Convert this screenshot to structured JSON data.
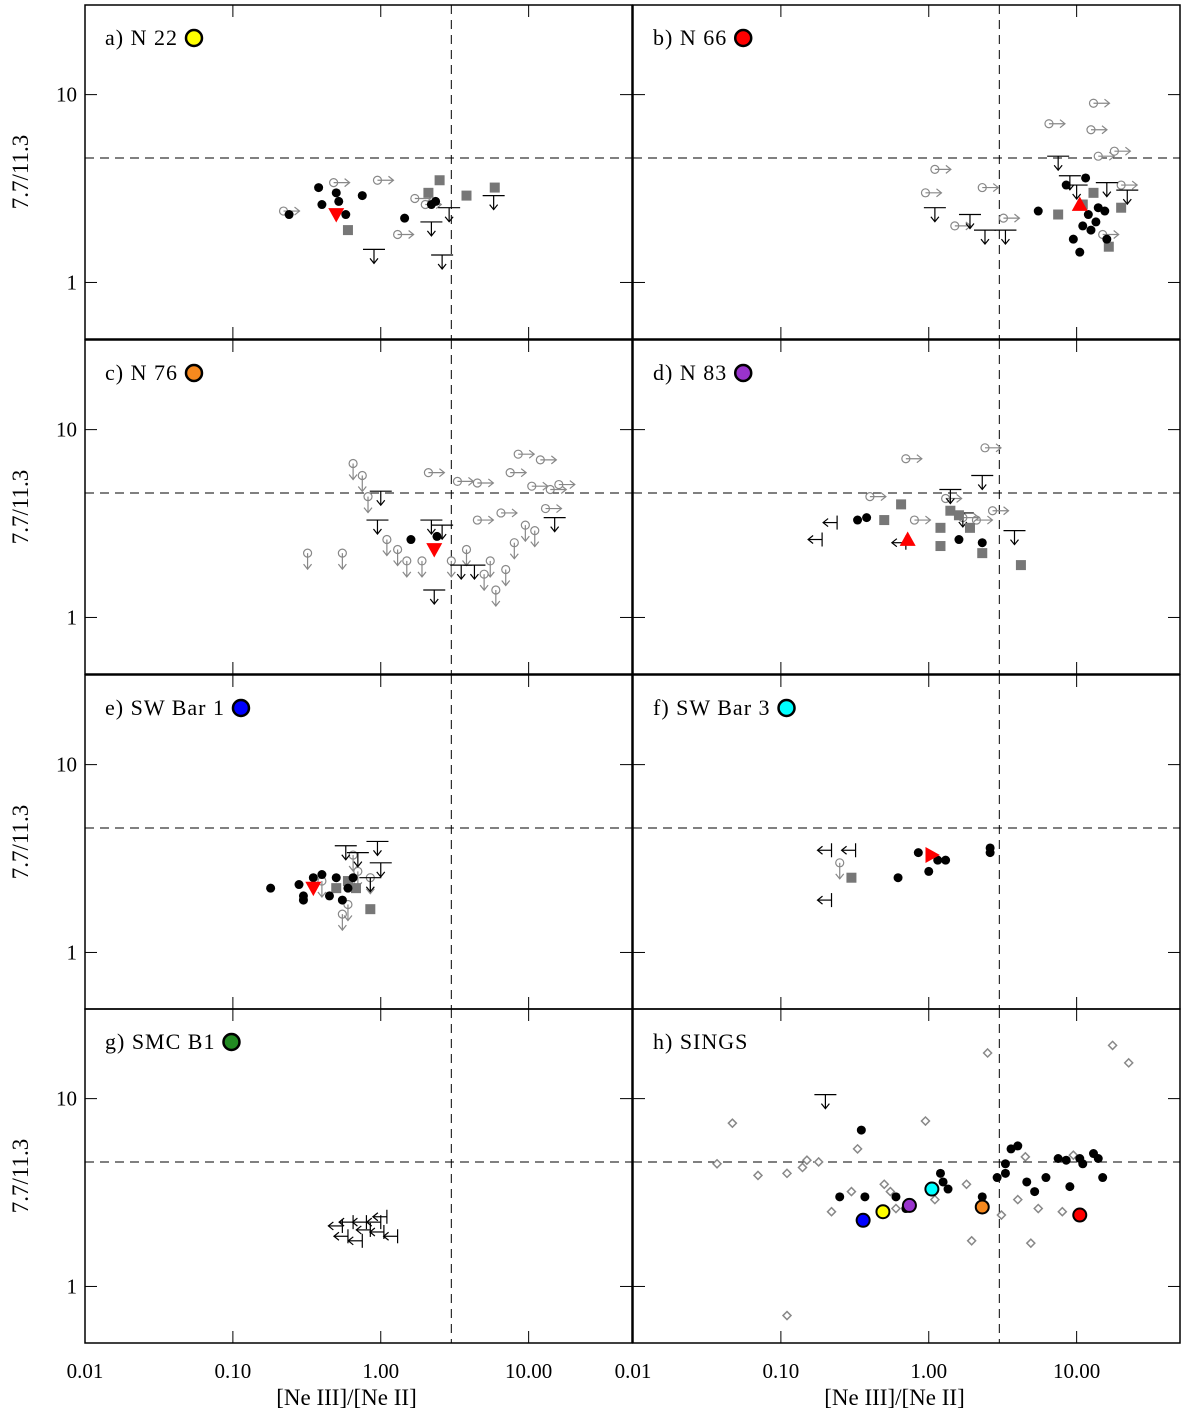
{
  "chart_data": [
    {
      "type": "scatter",
      "label": "a) N 22",
      "marker_color": "#ffff00",
      "xlim": [
        0.01,
        50
      ],
      "ylim": [
        0.5,
        30
      ],
      "log_x": true,
      "log_y": true,
      "xticks": [
        0.01,
        0.1,
        1,
        10
      ],
      "yticks": [
        1,
        10
      ],
      "hline": 4.6,
      "vline": 3,
      "ylabel": "7.7/11.3",
      "series": [
        {
          "color": "#888888",
          "marker": "open-circle",
          "arrow": "right",
          "x": [
            0.22,
            0.48,
            0.95,
            1.3,
            1.7,
            2.0
          ],
          "values": [
            2.4,
            3.4,
            3.5,
            1.8,
            2.8,
            2.6
          ]
        },
        {
          "color": "#000000",
          "marker": "bar",
          "arrow": "down",
          "x": [
            0.9,
            2.2,
            2.6,
            2.9,
            5.8
          ],
          "values": [
            1.5,
            2.1,
            1.4,
            2.5,
            2.9
          ]
        },
        {
          "color": "#777777",
          "marker": "square",
          "x": [
            0.6,
            2.1,
            2.5,
            3.8,
            5.9
          ],
          "values": [
            1.9,
            3.0,
            3.5,
            2.9,
            3.2
          ]
        },
        {
          "color": "#000000",
          "marker": "dot",
          "x": [
            0.24,
            0.38,
            0.4,
            0.5,
            0.52,
            0.58,
            0.75,
            1.45,
            2.2,
            2.35
          ],
          "values": [
            2.3,
            3.2,
            2.6,
            3.0,
            2.7,
            2.3,
            2.9,
            2.2,
            2.6,
            2.7
          ]
        },
        {
          "color": "#ff0000",
          "marker": "triangle-down",
          "x": [
            0.5
          ],
          "values": [
            2.3
          ]
        }
      ]
    },
    {
      "type": "scatter",
      "label": "b) N 66",
      "marker_color": "#ff0000",
      "xlim": [
        0.01,
        50
      ],
      "ylim": [
        0.5,
        30
      ],
      "log_x": true,
      "log_y": true,
      "xticks": [
        0.01,
        0.1,
        1,
        10
      ],
      "yticks": [
        1,
        10
      ],
      "hline": 4.6,
      "vline": 3,
      "series": [
        {
          "color": "#888888",
          "marker": "open-circle",
          "arrow": "right",
          "x": [
            0.95,
            1.1,
            1.5,
            2.3,
            3.2,
            6.5,
            13,
            12.5,
            14,
            18,
            20,
            15
          ],
          "values": [
            3.0,
            4.0,
            2.0,
            3.2,
            2.2,
            7.0,
            9.0,
            6.5,
            4.7,
            5.0,
            3.3,
            1.8
          ]
        },
        {
          "color": "#000000",
          "marker": "bar",
          "arrow": "down",
          "x": [
            1.1,
            1.9,
            2.4,
            3.3,
            7.5,
            9,
            10,
            16,
            22
          ],
          "values": [
            2.5,
            2.3,
            1.9,
            1.9,
            4.7,
            3.7,
            3.3,
            3.4,
            3.1
          ]
        },
        {
          "color": "#777777",
          "marker": "square",
          "x": [
            7.5,
            11,
            13,
            16.5,
            20
          ],
          "values": [
            2.3,
            2.6,
            3.0,
            1.55,
            2.5
          ]
        },
        {
          "color": "#000000",
          "marker": "dot",
          "x": [
            5.5,
            8.5,
            9.5,
            10.5,
            11,
            11.5,
            12,
            12.5,
            13.5,
            14,
            15.5,
            16
          ],
          "values": [
            2.4,
            3.3,
            1.7,
            1.45,
            2.0,
            3.6,
            2.3,
            1.9,
            2.1,
            2.5,
            2.4,
            1.7
          ]
        },
        {
          "color": "#ff0000",
          "marker": "triangle-up",
          "x": [
            10.5
          ],
          "values": [
            2.6
          ]
        }
      ]
    },
    {
      "type": "scatter",
      "label": "c) N 76",
      "marker_color": "#f7891e",
      "xlim": [
        0.01,
        50
      ],
      "ylim": [
        0.5,
        30
      ],
      "log_x": true,
      "log_y": true,
      "xticks": [
        0.01,
        0.1,
        1,
        10
      ],
      "yticks": [
        1,
        10
      ],
      "hline": 4.6,
      "vline": 3,
      "ylabel": "7.7/11.3",
      "series": [
        {
          "color": "#888888",
          "marker": "open-circle",
          "arrow": "down",
          "x": [
            0.32,
            0.55,
            0.65,
            0.75,
            0.82,
            1.1,
            1.3,
            1.5,
            1.9,
            3.0,
            3.8,
            5.5,
            6.0,
            7,
            5,
            8,
            9.5,
            11
          ],
          "values": [
            2.2,
            2.2,
            6.6,
            5.7,
            4.4,
            2.6,
            2.3,
            2.0,
            2.0,
            2.0,
            2.3,
            2.0,
            1.4,
            1.8,
            1.7,
            2.5,
            3.1,
            2.9
          ]
        },
        {
          "color": "#888888",
          "marker": "open-circle",
          "arrow": "right",
          "x": [
            2.1,
            3.3,
            4.5,
            4.5,
            6.5,
            7.5,
            8.5,
            10.5,
            12,
            14,
            16,
            13
          ],
          "values": [
            5.9,
            5.3,
            5.2,
            3.3,
            3.6,
            5.9,
            7.4,
            5.0,
            6.9,
            4.8,
            5.1,
            3.8
          ]
        },
        {
          "color": "#000000",
          "marker": "bar",
          "arrow": "down",
          "x": [
            0.95,
            1.0,
            2.2,
            2.6,
            2.3,
            3.5,
            4.3,
            15
          ],
          "values": [
            3.3,
            4.7,
            3.3,
            3.1,
            1.4,
            1.9,
            1.9,
            3.4
          ]
        },
        {
          "color": "#000000",
          "marker": "dot",
          "x": [
            1.6,
            2.4
          ],
          "values": [
            2.6,
            2.7
          ]
        },
        {
          "color": "#ff0000",
          "marker": "triangle-down",
          "x": [
            2.3
          ],
          "values": [
            2.3
          ]
        }
      ]
    },
    {
      "type": "scatter",
      "label": "d) N 83",
      "marker_color": "#9933cc",
      "xlim": [
        0.01,
        50
      ],
      "ylim": [
        0.5,
        30
      ],
      "log_x": true,
      "log_y": true,
      "xticks": [
        0.01,
        0.1,
        1,
        10
      ],
      "yticks": [
        1,
        10
      ],
      "hline": 4.6,
      "vline": 3,
      "series": [
        {
          "color": "#888888",
          "marker": "open-circle",
          "arrow": "right",
          "x": [
            0.4,
            0.7,
            0.8,
            1.3,
            2.1,
            2.4,
            2.7,
            1.7
          ],
          "values": [
            4.4,
            7.0,
            3.3,
            4.3,
            3.3,
            8.0,
            3.7,
            3.4
          ]
        },
        {
          "color": "#000000",
          "marker": "bar",
          "arrow": "left",
          "x": [
            0.19,
            0.24,
            0.7
          ],
          "values": [
            2.6,
            3.2,
            2.5
          ]
        },
        {
          "color": "#000000",
          "marker": "bar",
          "arrow": "down",
          "x": [
            1.4,
            2.3,
            3.8,
            1.7
          ],
          "values": [
            4.8,
            5.7,
            2.9,
            3.6
          ]
        },
        {
          "color": "#777777",
          "marker": "square",
          "x": [
            0.5,
            0.65,
            1.2,
            1.2,
            1.4,
            1.9,
            2.3,
            4.2,
            1.6
          ],
          "values": [
            3.3,
            4.0,
            3.0,
            2.4,
            3.7,
            3.0,
            2.2,
            1.9,
            3.5
          ]
        },
        {
          "color": "#000000",
          "marker": "dot",
          "x": [
            0.33,
            0.38,
            1.6,
            2.3
          ],
          "values": [
            3.3,
            3.4,
            2.6,
            2.5
          ]
        },
        {
          "color": "#ff0000",
          "marker": "triangle-up",
          "x": [
            0.72
          ],
          "values": [
            2.6
          ]
        }
      ]
    },
    {
      "type": "scatter",
      "label": "e) SW Bar 1",
      "marker_color": "#0000ff",
      "xlim": [
        0.01,
        50
      ],
      "ylim": [
        0.5,
        30
      ],
      "log_x": true,
      "log_y": true,
      "xticks": [
        0.01,
        0.1,
        1,
        10
      ],
      "yticks": [
        1,
        10
      ],
      "hline": 4.6,
      "vline": 3,
      "ylabel": "7.7/11.3",
      "series": [
        {
          "color": "#888888",
          "marker": "open-circle",
          "arrow": "down",
          "x": [
            0.4,
            0.55,
            0.65,
            0.7,
            0.85,
            0.6
          ],
          "values": [
            2.4,
            1.6,
            3.3,
            2.7,
            2.5,
            1.8
          ]
        },
        {
          "color": "#000000",
          "marker": "bar",
          "arrow": "down",
          "x": [
            0.58,
            0.95,
            1.0,
            0.7,
            0.85
          ],
          "values": [
            3.7,
            3.9,
            3.0,
            3.4,
            2.5
          ]
        },
        {
          "color": "#777777",
          "marker": "square",
          "x": [
            0.5,
            0.6,
            0.85,
            0.68
          ],
          "values": [
            2.2,
            2.4,
            1.7,
            2.2
          ]
        },
        {
          "color": "#000000",
          "marker": "dot",
          "x": [
            0.18,
            0.28,
            0.3,
            0.35,
            0.4,
            0.45,
            0.5,
            0.55,
            0.6,
            0.65,
            0.3
          ],
          "values": [
            2.2,
            2.3,
            1.9,
            2.5,
            2.6,
            2.0,
            2.5,
            1.9,
            2.2,
            2.5,
            2.0
          ]
        },
        {
          "color": "#ff0000",
          "marker": "triangle-down",
          "x": [
            0.35
          ],
          "values": [
            2.2
          ]
        }
      ]
    },
    {
      "type": "scatter",
      "label": "f) SW Bar 3",
      "marker_color": "#00ffff",
      "xlim": [
        0.01,
        50
      ],
      "ylim": [
        0.5,
        30
      ],
      "log_x": true,
      "log_y": true,
      "xticks": [
        0.01,
        0.1,
        1,
        10
      ],
      "yticks": [
        1,
        10
      ],
      "hline": 4.6,
      "vline": 3,
      "series": [
        {
          "color": "#888888",
          "marker": "open-circle",
          "arrow": "down",
          "x": [
            0.25
          ],
          "values": [
            3.0
          ]
        },
        {
          "color": "#000000",
          "marker": "bar",
          "arrow": "left",
          "x": [
            0.22,
            0.22,
            0.32
          ],
          "values": [
            1.9,
            3.5,
            3.5
          ]
        },
        {
          "color": "#777777",
          "marker": "square",
          "x": [
            0.3
          ],
          "values": [
            2.5
          ]
        },
        {
          "color": "#000000",
          "marker": "dot",
          "x": [
            0.62,
            1.0,
            0.85,
            1.15,
            1.3,
            2.6,
            2.6
          ],
          "values": [
            2.5,
            2.7,
            3.4,
            3.1,
            3.1,
            3.6,
            3.4
          ]
        },
        {
          "color": "#ff0000",
          "marker": "triangle-right",
          "x": [
            1.05
          ],
          "values": [
            3.3
          ]
        }
      ]
    },
    {
      "type": "scatter",
      "label": "g) SMC B1",
      "marker_color": "#228b22",
      "xlim": [
        0.01,
        50
      ],
      "ylim": [
        0.5,
        30
      ],
      "log_x": true,
      "log_y": true,
      "xticks": [
        0.01,
        {
          "value": 0.1,
          "label": "0.10"
        },
        {
          "value": 1,
          "label": "1.00"
        },
        {
          "value": 10,
          "label": "10.00"
        }
      ],
      "yticks": [
        1,
        10
      ],
      "hline": 4.6,
      "vline": 3,
      "xlabel": "[Ne III]/[Ne II]",
      "ylabel": "7.7/11.3",
      "series": [
        {
          "color": "#000000",
          "marker": "bar",
          "arrow": "left",
          "x": [
            0.65,
            0.55,
            0.6,
            0.8,
            0.85,
            1.0,
            1.05,
            1.1,
            1.3,
            0.75
          ],
          "values": [
            2.2,
            2.1,
            1.85,
            2.2,
            2.0,
            2.2,
            1.95,
            2.35,
            1.85,
            1.75
          ]
        }
      ]
    },
    {
      "type": "scatter",
      "label": "h) SINGS",
      "xlim": [
        0.01,
        50
      ],
      "ylim": [
        0.5,
        30
      ],
      "log_x": true,
      "log_y": true,
      "xticks": [
        0.01,
        {
          "value": 0.1,
          "label": "0.10"
        },
        {
          "value": 1,
          "label": "1.00"
        },
        {
          "value": 10,
          "label": "10.00"
        }
      ],
      "yticks": [
        1,
        10
      ],
      "hline": 4.6,
      "vline": 3,
      "xlabel": "[Ne III]/[Ne II]",
      "series": [
        {
          "color": "#888888",
          "marker": "diamond",
          "x": [
            0.037,
            0.047,
            0.07,
            0.11,
            0.11,
            0.14,
            0.15,
            0.18,
            0.22,
            0.3,
            0.33,
            0.5,
            0.55,
            0.6,
            0.95,
            1.1,
            1.8,
            1.95,
            2.5,
            3.1,
            4.0,
            4.5,
            4.9,
            5.5,
            8,
            17.5,
            22.5,
            9.5
          ],
          "values": [
            4.5,
            7.4,
            3.9,
            4.0,
            0.7,
            4.3,
            4.7,
            4.6,
            2.5,
            3.2,
            5.4,
            3.5,
            3.2,
            2.6,
            7.6,
            2.9,
            3.5,
            1.75,
            17.5,
            2.4,
            2.9,
            4.9,
            1.7,
            2.6,
            2.5,
            19.2,
            15.5,
            5.0
          ]
        },
        {
          "color": "#000000",
          "marker": "bar",
          "arrow": "down",
          "x": [
            0.2
          ],
          "values": [
            10.5
          ]
        },
        {
          "color": "#000000",
          "marker": "dot",
          "x": [
            0.35,
            0.25,
            0.37,
            0.6,
            0.7,
            1.2,
            1.25,
            1.35,
            2.3,
            2.9,
            3.3,
            3.3,
            3.6,
            4.0,
            4.6,
            5.2,
            6.2,
            7.5,
            8.5,
            9,
            10.5,
            11,
            13,
            14,
            15
          ],
          "values": [
            6.8,
            3.0,
            3.0,
            3.0,
            2.6,
            4.0,
            3.6,
            3.3,
            3.0,
            3.8,
            4.5,
            4.0,
            5.4,
            5.6,
            3.6,
            3.2,
            3.8,
            4.8,
            4.7,
            3.4,
            4.8,
            4.5,
            5.1,
            4.8,
            3.8
          ]
        },
        {
          "color": "#0000ff",
          "marker": "big-circle",
          "x": [
            0.36
          ],
          "values": [
            2.25
          ]
        },
        {
          "color": "#ffff00",
          "marker": "big-circle",
          "x": [
            0.49
          ],
          "values": [
            2.5
          ]
        },
        {
          "color": "#9933cc",
          "marker": "big-circle",
          "x": [
            0.74
          ],
          "values": [
            2.7
          ]
        },
        {
          "color": "#00ffff",
          "marker": "big-circle",
          "x": [
            1.05
          ],
          "values": [
            3.3
          ]
        },
        {
          "color": "#f7891e",
          "marker": "big-circle",
          "x": [
            2.3
          ],
          "values": [
            2.65
          ]
        },
        {
          "color": "#ff0000",
          "marker": "big-circle",
          "x": [
            10.5
          ],
          "values": [
            2.4
          ]
        }
      ]
    }
  ]
}
